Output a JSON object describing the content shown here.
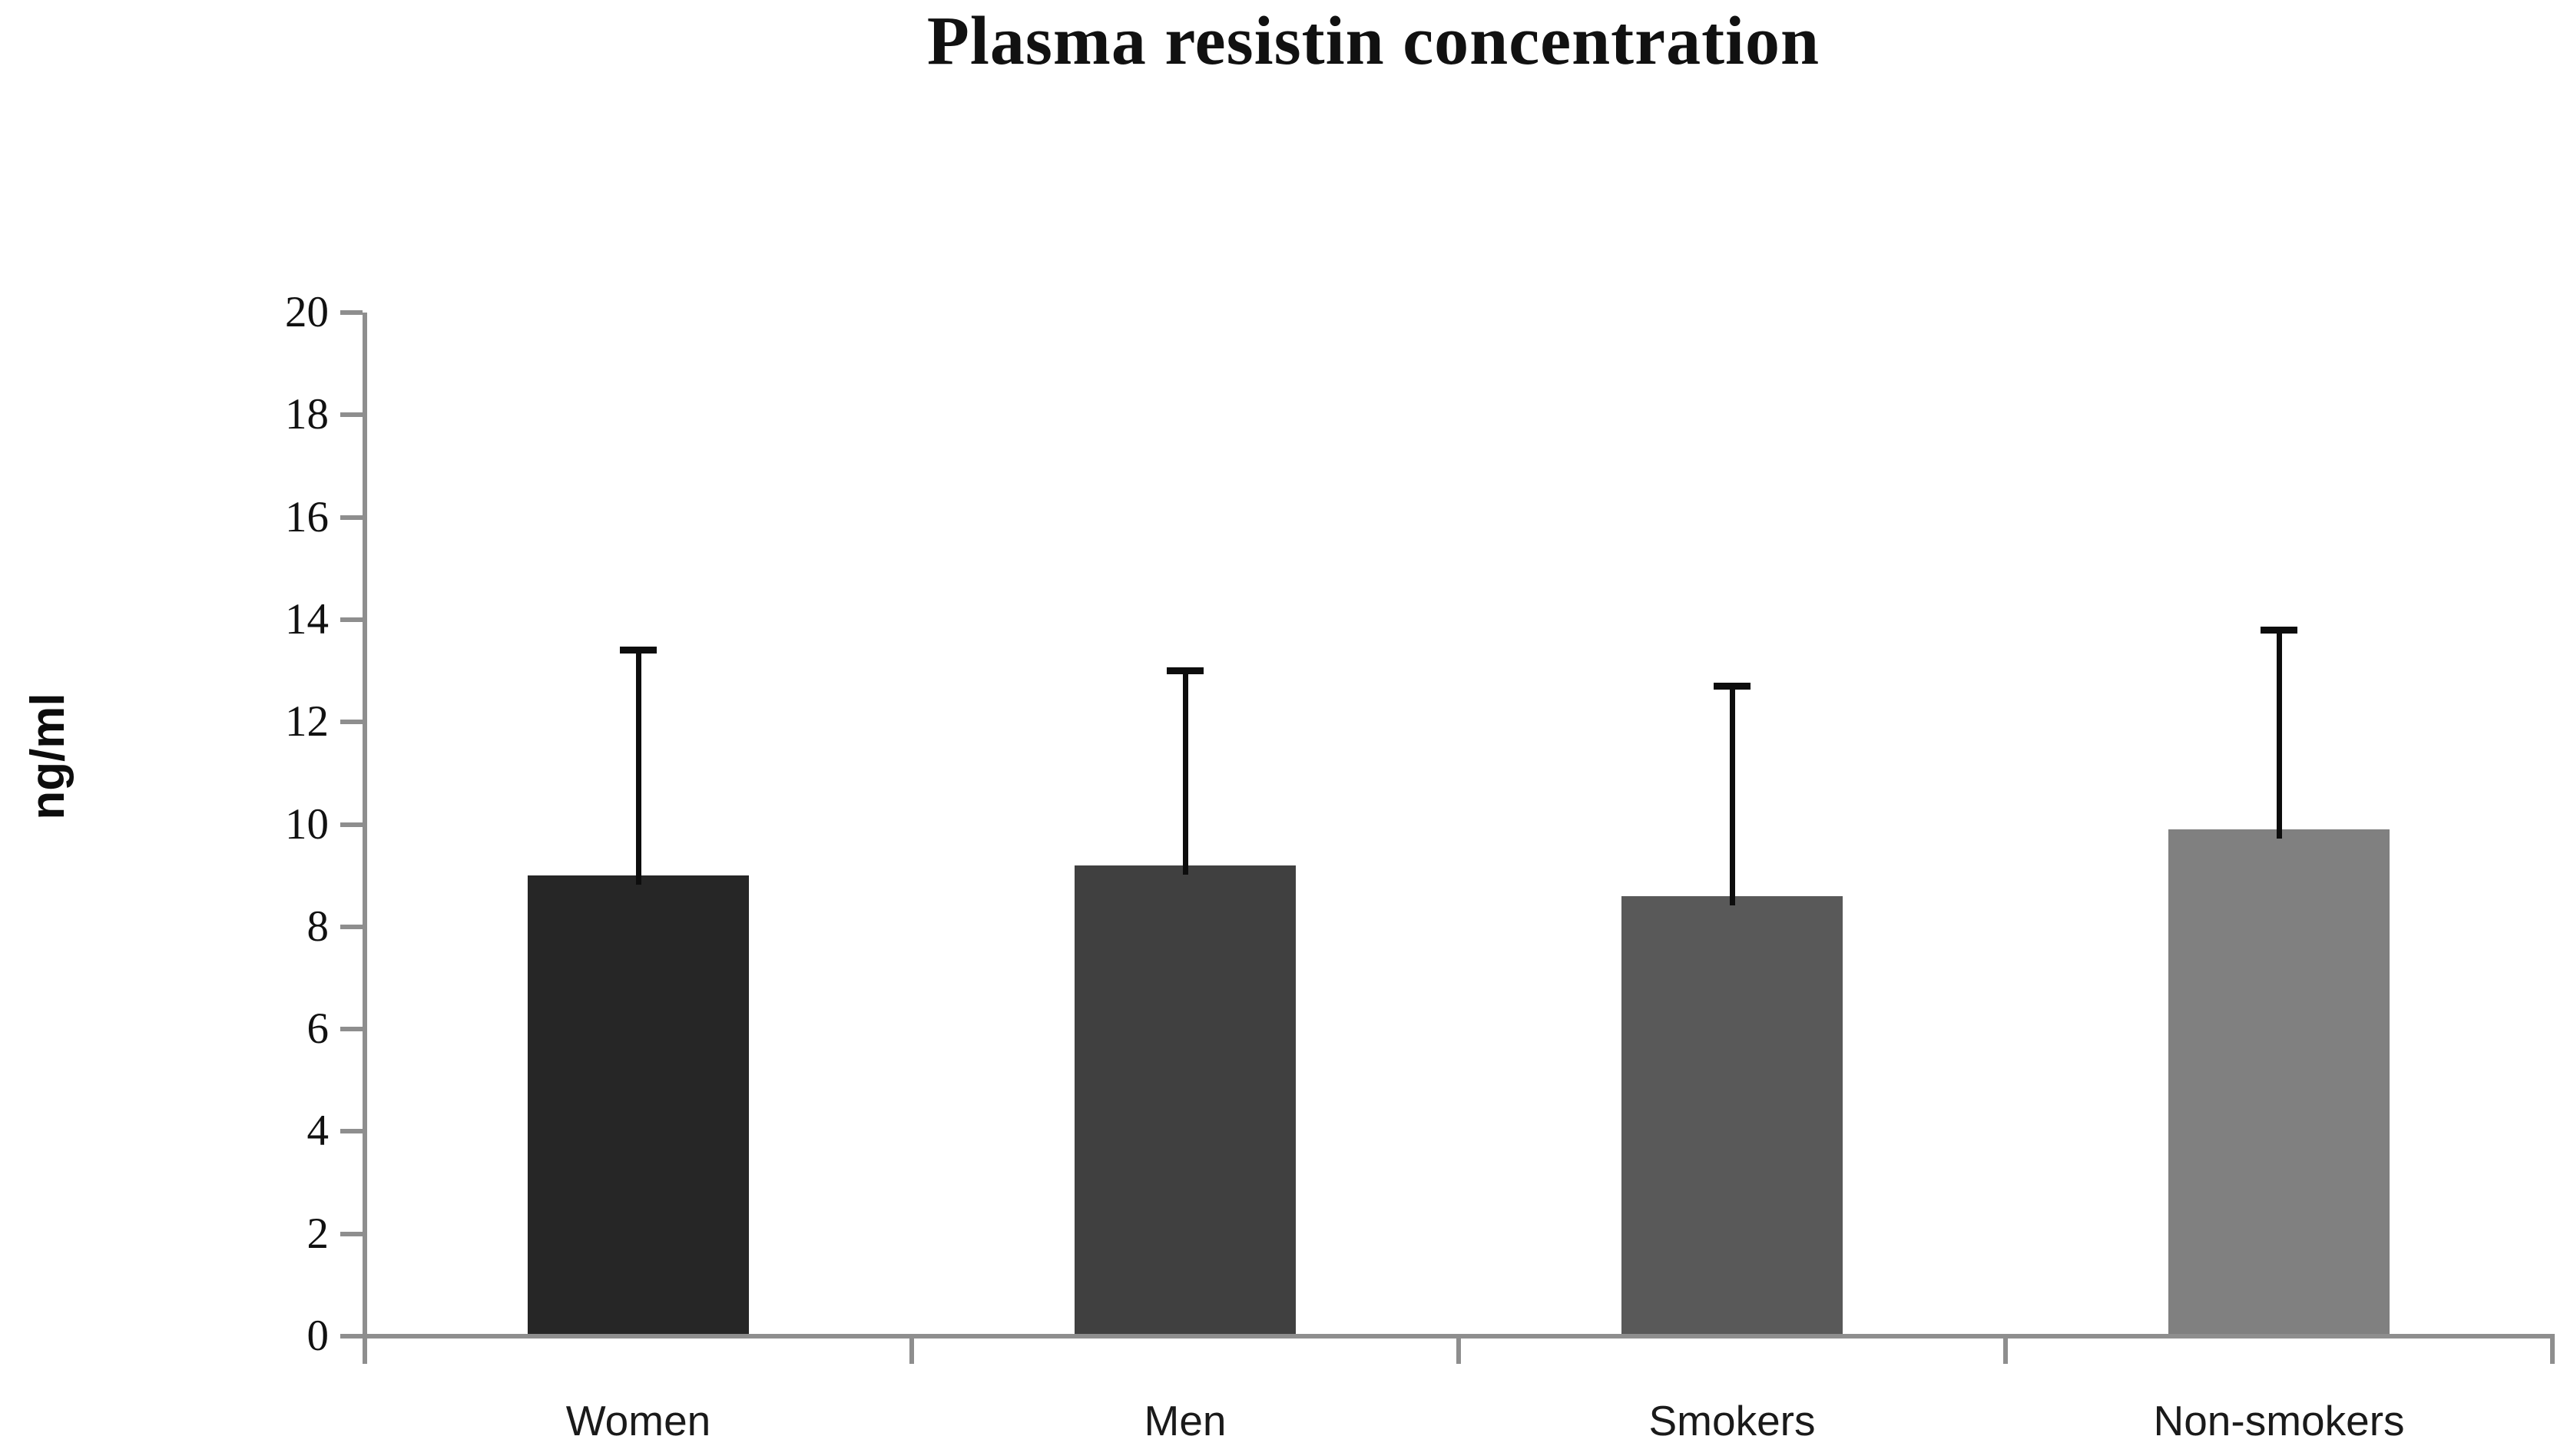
{
  "chart_data": {
    "type": "bar",
    "title": "Plasma resistin concentration",
    "ylabel": "ng/ml",
    "xlabel": "",
    "categories": [
      "Women",
      "Men",
      "Smokers",
      "Non-smokers"
    ],
    "values": [
      9.0,
      9.2,
      8.6,
      9.9
    ],
    "error_upper_tops": [
      13.4,
      13.0,
      12.7,
      13.8
    ],
    "error_bars": "upper-only, black caps",
    "ylim": [
      0,
      20
    ],
    "ytick_step": 2,
    "ytick_labels": [
      "0",
      "2",
      "4",
      "6",
      "8",
      "10",
      "12",
      "14",
      "16",
      "18",
      "20"
    ],
    "bar_colors": [
      "#262626",
      "#404040",
      "#595959",
      "#808080"
    ],
    "axis_color": "#8e8e8e",
    "error_color": "#0d0d0d",
    "grid": false,
    "legend": false,
    "background": "#ffffff"
  }
}
